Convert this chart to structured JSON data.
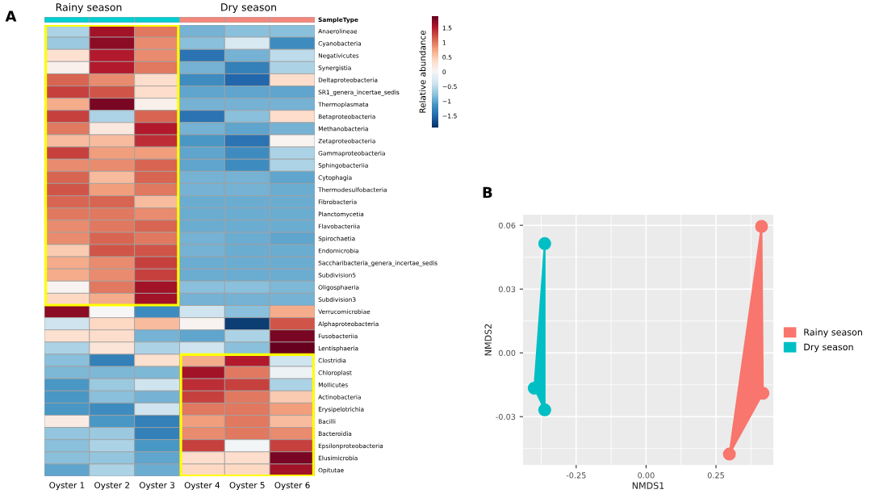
{
  "chart_data": [
    {
      "type": "heatmap",
      "clabel": "Relative abundance",
      "annotations": [
        "A",
        "Rainy season",
        "Dry season",
        "SampleType"
      ],
      "categories": [
        "Oyster 1",
        "Oyster 2",
        "Oyster 3",
        "Oyster 4",
        "Oyster 5",
        "Oyster 6"
      ],
      "y_categories": [
        "Anaerolineae",
        "Cyanobacteria",
        "Negativicutes",
        "Synergistia",
        "Deltaproteobacteria",
        "SR1_genera_incertae_sedis",
        "Thermoplasmata",
        "Betaproteobacteria",
        "Methanobacteria",
        "Zetaproteobacteria",
        "Gammaproteobacteria",
        "Sphingobacteriia",
        "Cytophagia",
        "Thermodesulfobacteria",
        "Fibrobacteria",
        "Planctomycetia",
        "Flavobacteriia",
        "Spirochaetia",
        "Endomicrobia",
        "Saccharibacteria_genera_incertae_sedis",
        "Subdivision5",
        "Oligosphaeria",
        "Subdivision3",
        "Verrucomicrobiae",
        "Alphaproteobacteria",
        "Fusobacteriia",
        "Lentisphaeria",
        "Clostridia",
        "Chloroplast",
        "Mollicutes",
        "Actinobacteria",
        "Erysipelotrichia",
        "Bacilli",
        "Bacteroidia",
        "Epsilonproteobacteria",
        "Elusimicrobia",
        "Opitutae"
      ],
      "cells": [
        [
          -0.6,
          1.6,
          1.0,
          -0.9,
          -0.8,
          -0.8
        ],
        [
          -0.7,
          1.7,
          0.9,
          -0.8,
          -0.3,
          -1.2
        ],
        [
          0.3,
          1.5,
          0.9,
          -1.4,
          -0.9,
          -0.5
        ],
        [
          0.1,
          1.5,
          1.0,
          -0.9,
          -1.3,
          -0.6
        ],
        [
          1.1,
          0.9,
          0.35,
          -1.2,
          -1.5,
          0.35
        ],
        [
          1.3,
          1.2,
          0.35,
          -1.0,
          -1.0,
          -1.0
        ],
        [
          0.7,
          1.8,
          0.1,
          -0.9,
          -0.9,
          -0.9
        ],
        [
          1.3,
          -0.6,
          1.1,
          -1.4,
          -0.8,
          0.35
        ],
        [
          1.0,
          0.2,
          1.5,
          -0.9,
          -1.0,
          -0.9
        ],
        [
          0.6,
          0.6,
          1.4,
          -1.1,
          -1.4,
          0.05
        ],
        [
          1.3,
          0.8,
          0.8,
          -1.0,
          -1.2,
          -0.6
        ],
        [
          0.9,
          0.9,
          1.1,
          -1.0,
          -1.2,
          -0.6
        ],
        [
          1.1,
          0.6,
          1.1,
          -0.9,
          -0.9,
          -1.0
        ],
        [
          1.2,
          0.8,
          1.0,
          -0.9,
          -0.9,
          -0.95
        ],
        [
          1.1,
          1.1,
          0.6,
          -0.95,
          -0.95,
          -0.95
        ],
        [
          1.0,
          1.0,
          0.9,
          -0.95,
          -0.95,
          -0.95
        ],
        [
          0.9,
          1.0,
          1.1,
          -0.95,
          -0.95,
          -0.95
        ],
        [
          0.9,
          1.1,
          1.0,
          -0.9,
          -0.95,
          -1.0
        ],
        [
          0.5,
          1.2,
          1.2,
          -0.9,
          -0.95,
          -0.95
        ],
        [
          0.7,
          0.9,
          1.3,
          -0.95,
          -0.95,
          -0.95
        ],
        [
          0.7,
          0.9,
          1.3,
          -0.95,
          -0.95,
          -0.95
        ],
        [
          0.05,
          1.0,
          1.6,
          -0.8,
          -0.8,
          -0.85
        ],
        [
          0.4,
          0.7,
          1.6,
          -0.9,
          -0.9,
          -0.9
        ],
        [
          1.7,
          0.0,
          -1.2,
          -0.4,
          -0.8,
          0.7
        ],
        [
          -0.4,
          0.4,
          0.6,
          0.05,
          -1.8,
          1.2
        ],
        [
          0.3,
          0.35,
          -0.9,
          -1.0,
          -0.6,
          1.8
        ],
        [
          -0.6,
          0.25,
          -0.6,
          -0.4,
          -0.8,
          1.9
        ],
        [
          -0.8,
          -1.3,
          0.3,
          0.7,
          1.5,
          -0.4
        ],
        [
          -0.85,
          -0.85,
          -0.85,
          1.6,
          1.0,
          -0.1
        ],
        [
          -1.1,
          -0.7,
          -0.4,
          1.4,
          1.3,
          -0.6
        ],
        [
          -1.1,
          -0.8,
          -0.9,
          1.3,
          1.0,
          0.5
        ],
        [
          -1.1,
          -1.2,
          -0.4,
          1.0,
          1.0,
          0.8
        ],
        [
          0.15,
          -1.1,
          -1.3,
          0.8,
          1.0,
          0.6
        ],
        [
          -0.75,
          -0.7,
          -1.3,
          0.9,
          1.0,
          0.9
        ],
        [
          -0.8,
          -0.6,
          -1.1,
          1.3,
          -0.05,
          1.3
        ],
        [
          -0.8,
          -0.75,
          -1.0,
          0.35,
          0.35,
          1.8
        ],
        [
          -1.0,
          -0.6,
          -0.95,
          0.4,
          0.4,
          1.6
        ]
      ],
      "clim": [
        -1.9,
        1.9
      ],
      "cticks": [
        {
          "value": -1.5,
          "label": "−1.5"
        },
        {
          "value": -1,
          "label": "−1"
        },
        {
          "value": -0.5,
          "label": "−0.5"
        },
        0,
        0.5,
        1,
        1.5
      ]
    },
    {
      "type": "scatter",
      "xlabel": "NMDS1",
      "ylabel": "NMDS2",
      "annotations": [
        "B"
      ],
      "xlim": [
        -0.44,
        0.455
      ],
      "ylim": [
        -0.0527,
        0.065
      ],
      "xticks": [
        {
          "value": -0.25,
          "label": "-0.25"
        },
        {
          "value": 0,
          "label": "0.00"
        },
        {
          "value": 0.25,
          "label": "0.25"
        }
      ],
      "yticks": [
        {
          "value": -0.03,
          "label": "-0.03"
        },
        {
          "value": 0,
          "label": "0.00"
        },
        {
          "value": 0.03,
          "label": "0.03"
        },
        {
          "value": 0.06,
          "label": "0.06"
        }
      ],
      "grid": true,
      "legend": "right",
      "marker": "circle",
      "series": [
        {
          "name": "Rainy season",
          "color": "#f8766d",
          "x": [
            0.413,
            0.418,
            0.298
          ],
          "values": [
            0.0595,
            -0.019,
            -0.0476
          ]
        },
        {
          "name": "Dry season",
          "color": "#00bfc4",
          "x": [
            -0.3625,
            -0.4,
            -0.3625
          ],
          "values": [
            0.0514,
            -0.0166,
            -0.0268
          ]
        }
      ]
    }
  ]
}
